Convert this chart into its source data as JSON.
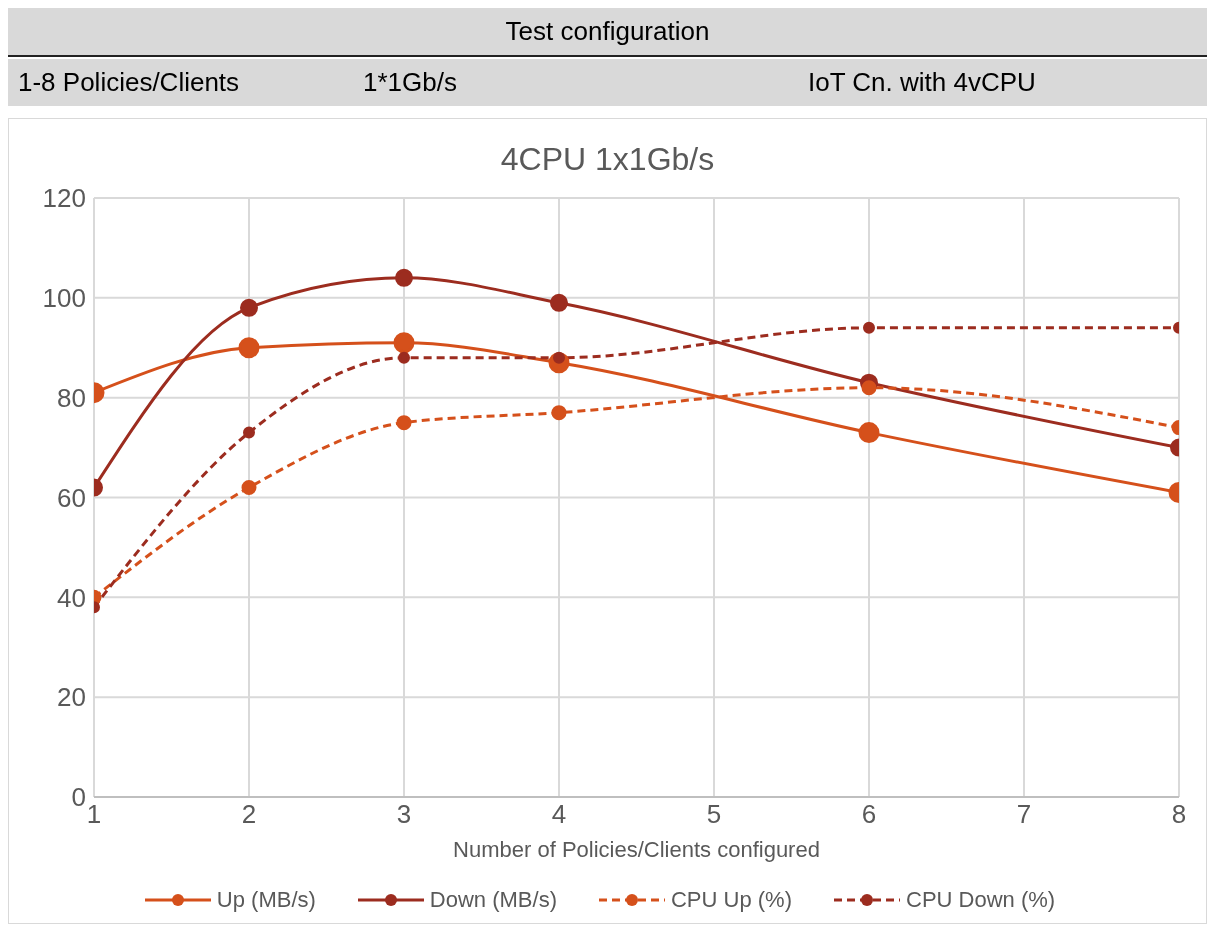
{
  "chart_data": {
    "type": "line",
    "title": "4CPU 1x1Gb/s",
    "xlabel": "Number of Policies/Clients configured",
    "annotations": [
      "Test configuration",
      "1-8 Policies/Clients",
      "1*1Gb/s",
      "IoT Cn. with 4vCPU"
    ],
    "x": [
      1,
      2,
      3,
      4,
      6,
      8
    ],
    "xlim": [
      1,
      8
    ],
    "xticks": [
      1,
      2,
      3,
      4,
      5,
      6,
      7,
      8
    ],
    "ylim": [
      0,
      120
    ],
    "yticks": [
      0,
      20,
      40,
      60,
      80,
      100,
      120
    ],
    "grid": true,
    "legend": "bottom",
    "marker": "circle",
    "series": [
      {
        "name": "Up (MB/s)",
        "color": "#d5501b",
        "values": [
          81,
          90,
          91,
          87,
          73,
          61
        ],
        "line_style": "solid"
      },
      {
        "name": "Down (MB/s)",
        "color": "#9c2c1f",
        "values": [
          62,
          98,
          104,
          99,
          83,
          70
        ],
        "line_style": "solid"
      },
      {
        "name": "CPU Up (%)",
        "color": "#d5501b",
        "values": [
          40,
          62,
          75,
          77,
          82,
          74
        ],
        "line_style": "dashed"
      },
      {
        "name": "CPU Down (%)",
        "color": "#9c2c1f",
        "values": [
          38,
          73,
          88,
          88,
          94,
          94
        ],
        "line_style": "dashed"
      }
    ]
  }
}
